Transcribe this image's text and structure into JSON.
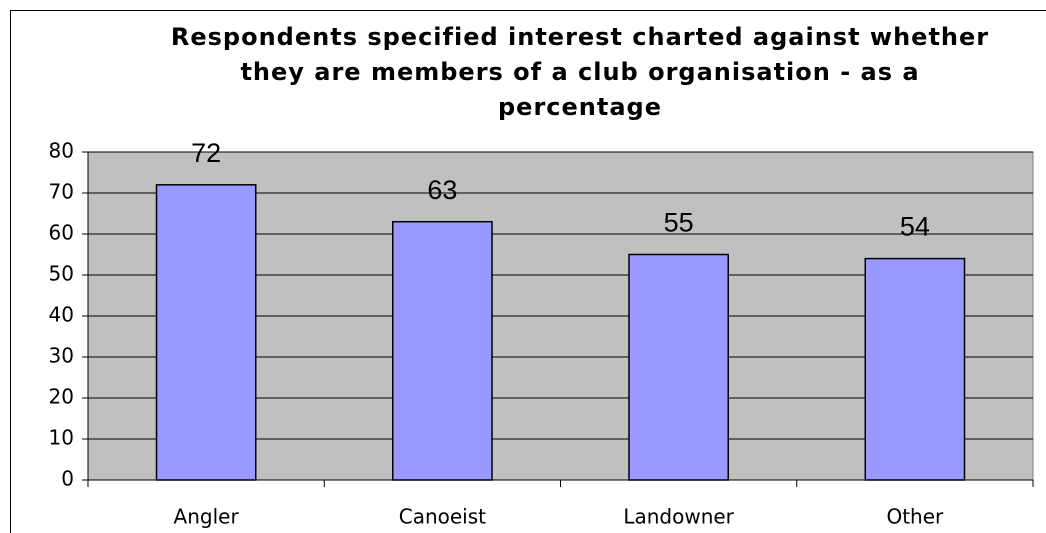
{
  "chart_data": {
    "type": "bar",
    "title": "Respondents specified interest charted against whether they are members of a club organisation - as a percentage",
    "categories": [
      "Angler",
      "Canoeist",
      "Landowner",
      "Other"
    ],
    "values": [
      72,
      63,
      55,
      54
    ],
    "color": "#9999ff",
    "ylim": [
      0,
      80
    ],
    "yticks": [
      0,
      10,
      20,
      30,
      40,
      50,
      60,
      70,
      80
    ],
    "grid": true
  }
}
